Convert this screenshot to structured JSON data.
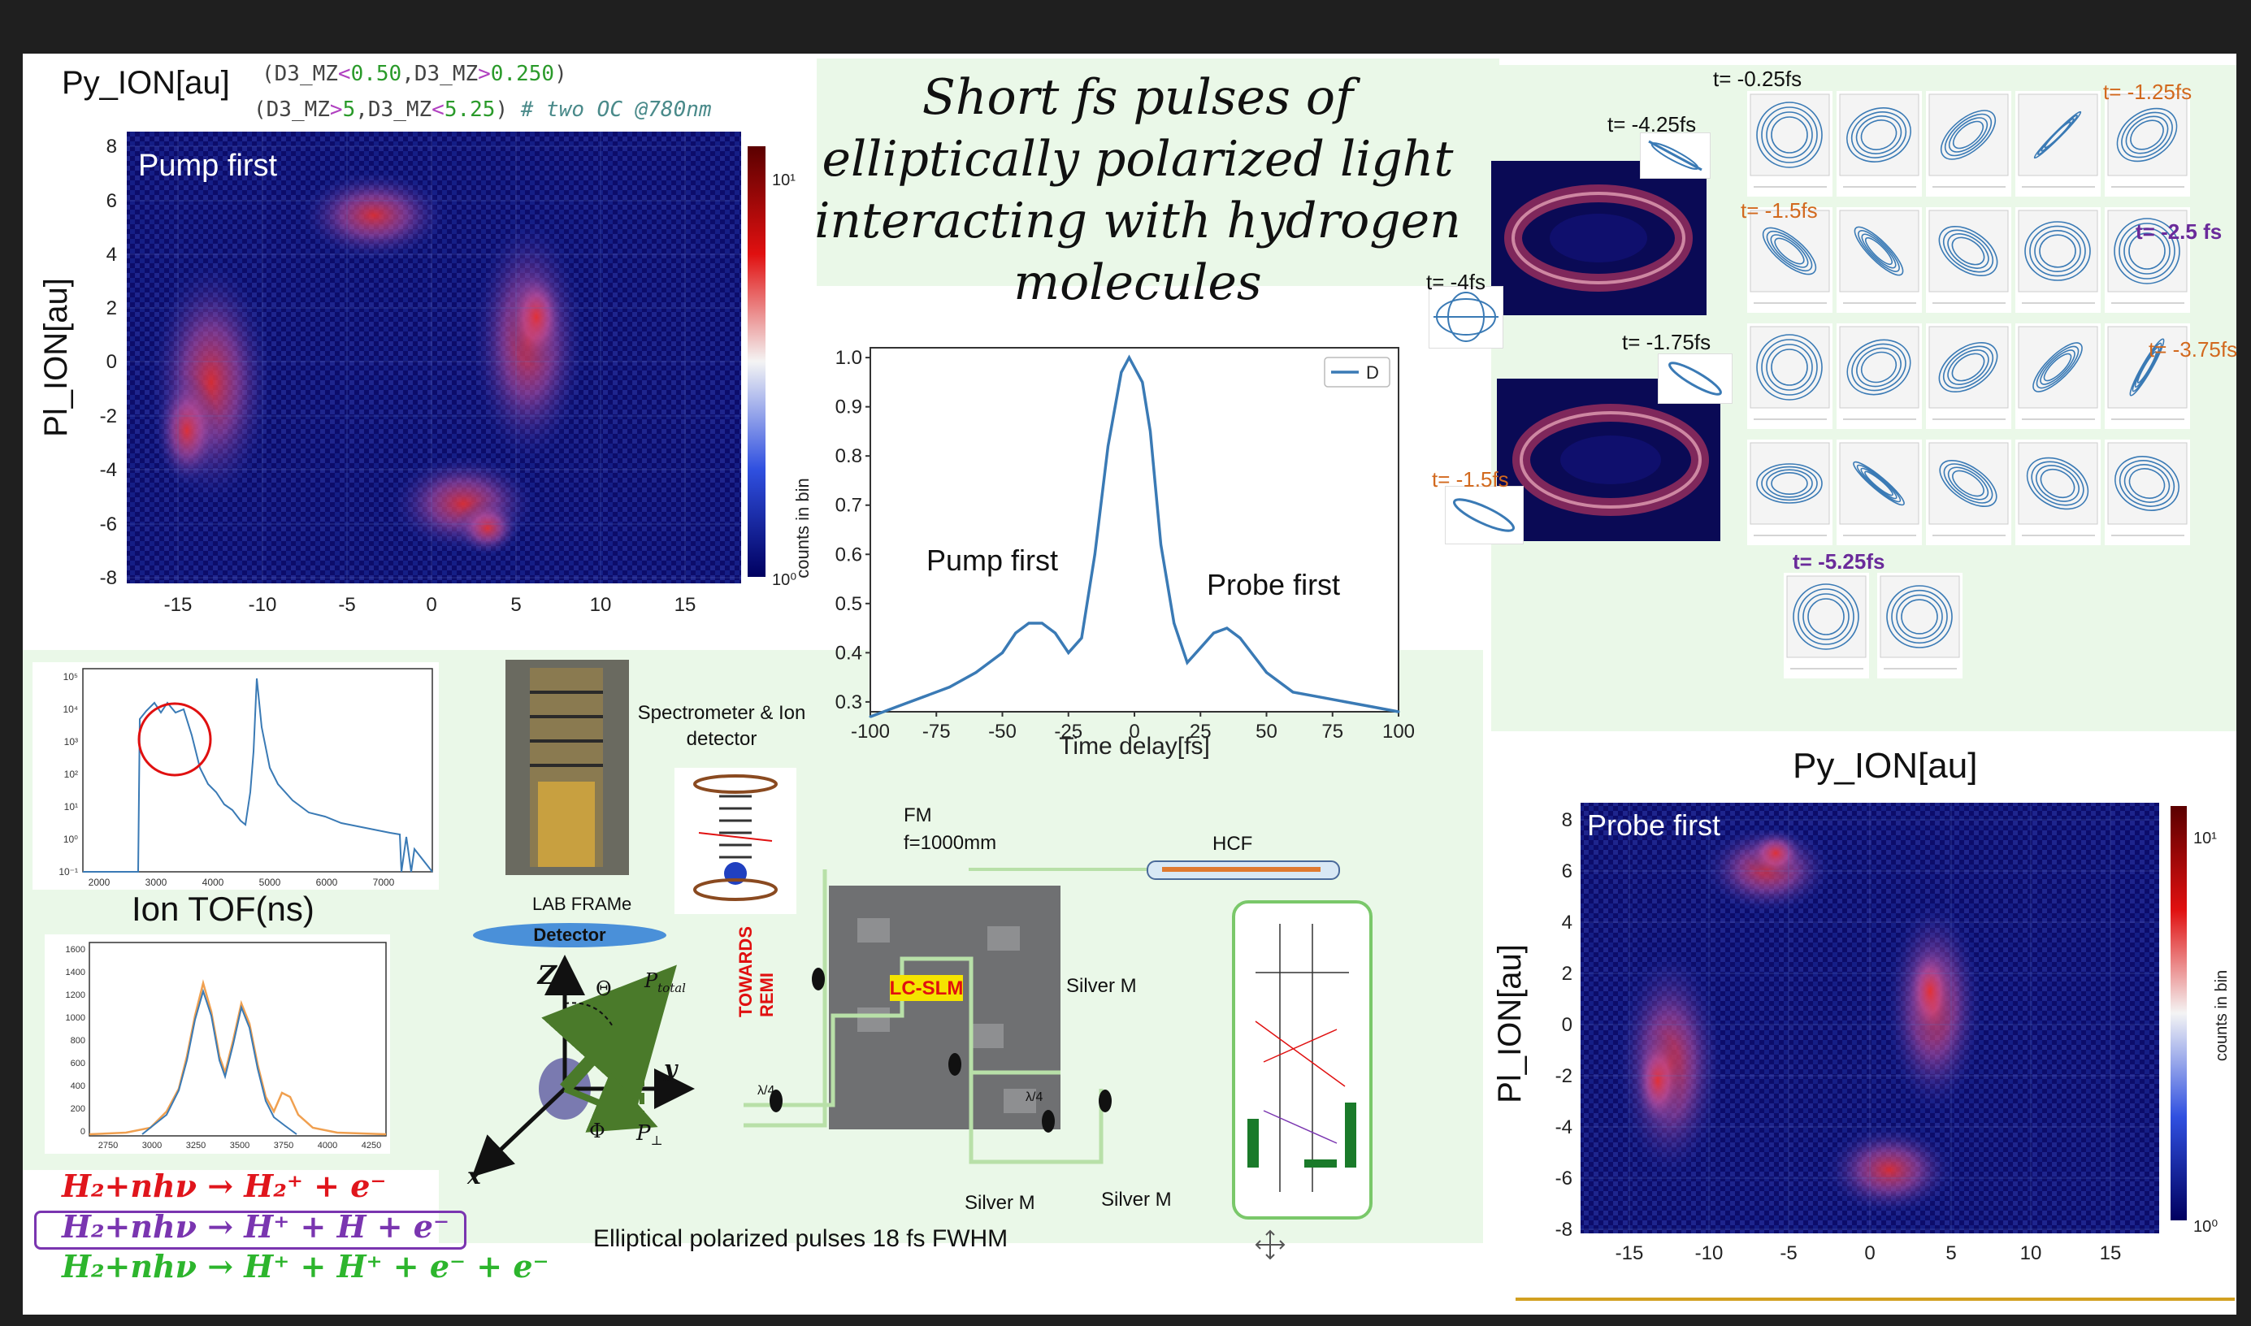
{
  "heatmap_top": {
    "title": "Py_ION[au]",
    "cond1_prefix": "(D3_MZ",
    "cond1_op1": "<",
    "cond1_v1": "0.50",
    "cond1_sep": ",D3_MZ",
    "cond1_op2": ">",
    "cond1_v2": "0.250",
    "cond1_end": ")",
    "cond2_prefix": "(D3_MZ",
    "cond2_op1": ">",
    "cond2_v1": "5",
    "cond2_sep": ",D3_MZ",
    "cond2_op2": "<",
    "cond2_v2": "5.25",
    "cond2_end": ")",
    "comment": "# two OC @780nm",
    "inset_label": "Pump first",
    "ylabel": "Pl_ION[au]",
    "colorbar_top": "10¹",
    "colorbar_bottom": "10⁰"
  },
  "heatmap_bottom": {
    "title": "Py_ION[au]",
    "inset_label": "Probe first",
    "ylabel": "Pl_ION[au]",
    "colorbar_label": "counts in bin",
    "colorbar_top": "10¹",
    "colorbar_bottom": "10⁰"
  },
  "slide_title": "Short fs pulses of elliptically polarized light interacting with hydrogen molecules",
  "chart_data": {
    "type": "line",
    "xlabel": "Time delay[fs]",
    "ylabel": "counts in bin",
    "legend": "D",
    "legend_position": "top-right",
    "xlim": [
      -100,
      100
    ],
    "ylim": [
      0.28,
      1.02
    ],
    "x_ticks": [
      -100,
      -75,
      -50,
      -25,
      0,
      25,
      50,
      75,
      100
    ],
    "y_ticks": [
      0.3,
      0.4,
      0.5,
      0.6,
      0.7,
      0.8,
      0.9,
      1.0
    ],
    "annotations": [
      "Pump first",
      "Probe first"
    ],
    "series": [
      {
        "color": "#3a7ab5",
        "x": [
          -100,
          -90,
          -80,
          -70,
          -60,
          -50,
          -45,
          -40,
          -35,
          -30,
          -25,
          -20,
          -15,
          -10,
          -5,
          -2,
          0,
          3,
          6,
          10,
          15,
          20,
          25,
          30,
          35,
          40,
          50,
          60,
          70,
          80,
          90,
          100
        ],
        "y": [
          0.27,
          0.29,
          0.31,
          0.33,
          0.36,
          0.4,
          0.44,
          0.46,
          0.46,
          0.44,
          0.4,
          0.43,
          0.6,
          0.82,
          0.97,
          1.0,
          0.98,
          0.95,
          0.85,
          0.62,
          0.46,
          0.38,
          0.41,
          0.44,
          0.45,
          0.43,
          0.36,
          0.32,
          0.31,
          0.3,
          0.29,
          0.28
        ]
      }
    ]
  },
  "heatmap_x_ticks": [
    "-15",
    "-10",
    "-5",
    "0",
    "5",
    "10",
    "15"
  ],
  "heatmap_y_ticks": [
    "8",
    "6",
    "4",
    "2",
    "0",
    "-2",
    "-4",
    "-6",
    "-8"
  ],
  "tof": {
    "label": "Ion TOF(ns)",
    "x_ticks": [
      "2000",
      "3000",
      "4000",
      "5000",
      "6000",
      "7000"
    ],
    "y_ticks": [
      "10⁵",
      "10⁴",
      "10³",
      "10²",
      "10¹",
      "10⁰",
      "10⁻¹"
    ]
  },
  "tof2": {
    "x_ticks": [
      "2750",
      "3000",
      "3250",
      "3500",
      "3750",
      "4000",
      "4250"
    ],
    "y_ticks": [
      "1600",
      "1400",
      "1200",
      "1000",
      "800",
      "600",
      "400",
      "200",
      "0"
    ]
  },
  "setup": {
    "spectrometer": "Spectrometer & Ion detector",
    "lab_frame": "LAB FRAMe",
    "detector": "Detector",
    "fm": "FM",
    "fm_focal": "f=1000mm",
    "hcf": "HCF",
    "towards": "TOWARDS",
    "remi": "REMI",
    "lcslm": "LC-SLM",
    "silver_m1": "Silver M",
    "silver_m2": "Silver M",
    "silver_m3": "Silver M",
    "quarter": "λ/4",
    "caption": "Elliptical polarized pulses 18 fs FWHM",
    "axis_z": "Z",
    "axis_y": "y",
    "axis_x": "x",
    "theta": "Θ",
    "phi": "Φ",
    "p_total": "P",
    "p_total_sub": "total",
    "p_perp": "P",
    "p_perp_sub": "⊥"
  },
  "reactions": [
    {
      "text": "H₂+nhν → H₂⁺ + e⁻",
      "color": "#e0151c"
    },
    {
      "text": "H₂+nhν → H⁺ + H + e⁻",
      "color": "#7a35b0"
    },
    {
      "text": "H₂+nhν → H⁺ + H⁺ + e⁻ + e⁻",
      "color": "#2db52d"
    }
  ],
  "time_labels": {
    "t1": "t= -0.25fs",
    "t2": "t= -1.25fs",
    "t3": "t= -4.25fs",
    "t4": "t= -1.5fs",
    "t5": "t= -2.5 fs",
    "t6": "t= -4fs",
    "t7": "t= -1.75fs",
    "t8": "t= -3.75fs",
    "t9": "t= -1.5fs",
    "t10": "t= -5.25fs"
  },
  "colors": {
    "accent_orange": "#d2691e",
    "accent_purple": "#6a2a9a",
    "curve_blue": "#3a7ab5",
    "heatmap_bg": "#0a0a5a"
  }
}
